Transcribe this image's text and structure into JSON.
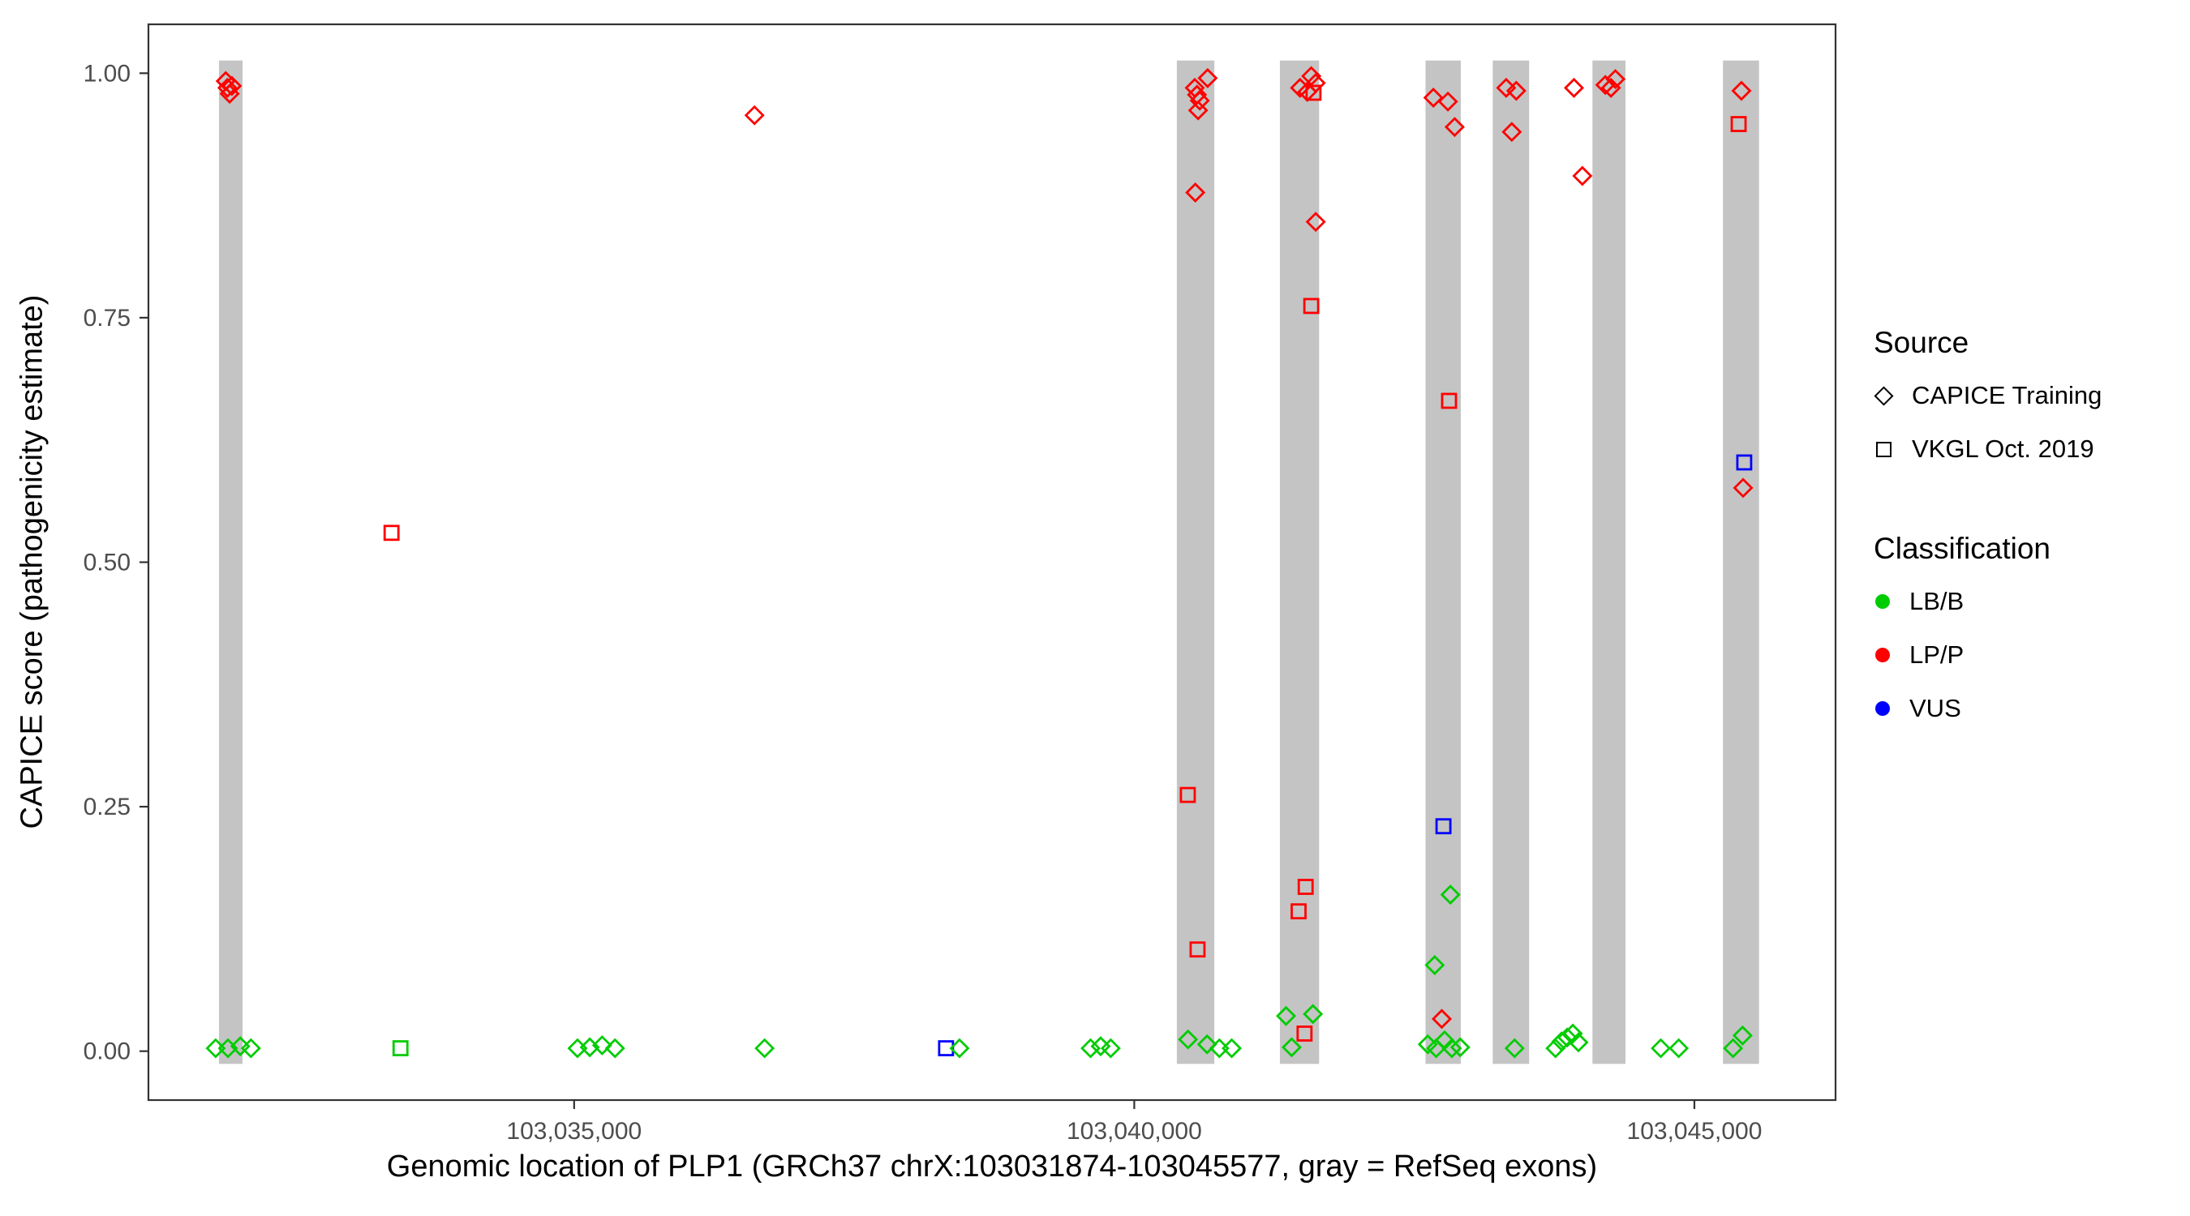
{
  "figure": {
    "x_axis_title": "Genomic location of PLP1 (GRCh37 chrX:103031874-103045577, gray = RefSeq exons)",
    "y_axis_title": "CAPICE score (pathogenicity estimate)"
  },
  "legend": {
    "source": {
      "title": "Source",
      "items": [
        {
          "label": "CAPICE Training",
          "shape": "diamond"
        },
        {
          "label": "VKGL Oct. 2019",
          "shape": "square"
        }
      ]
    },
    "classification": {
      "title": "Classification",
      "items": [
        {
          "label": "LB/B",
          "color": "#00CC00"
        },
        {
          "label": "LP/P",
          "color": "#FF0000"
        },
        {
          "label": "VUS",
          "color": "#0000FF"
        }
      ]
    }
  },
  "chart_data": {
    "type": "scatter",
    "title": "",
    "xlabel": "Genomic location of PLP1 (GRCh37 chrX:103031874-103045577, gray = RefSeq exons)",
    "ylabel": "CAPICE score (pathogenicity estimate)",
    "x_domain": [
      103031200,
      103046260
    ],
    "y_domain": [
      -0.05,
      1.05
    ],
    "x_ticks": [
      {
        "value": 103035000,
        "label": "103,035,000"
      },
      {
        "value": 103040000,
        "label": "103,040,000"
      },
      {
        "value": 103045000,
        "label": "103,045,000"
      }
    ],
    "y_ticks": [
      {
        "value": 0.0,
        "label": "0.00"
      },
      {
        "value": 0.25,
        "label": "0.25"
      },
      {
        "value": 0.5,
        "label": "0.50"
      },
      {
        "value": 0.75,
        "label": "0.75"
      },
      {
        "value": 1.0,
        "label": "1.00"
      }
    ],
    "grid": false,
    "legend_position": "right",
    "exon_color": "#C4C4C4",
    "exon_band_y": [
      -0.013,
      1.013
    ],
    "exons": [
      [
        103031830,
        103032040
      ],
      [
        103040380,
        103040715
      ],
      [
        103041300,
        103041650
      ],
      [
        103042600,
        103042915
      ],
      [
        103043200,
        103043525
      ],
      [
        103044090,
        103044385
      ],
      [
        103045255,
        103045577
      ]
    ],
    "colors": {
      "LB/B": "#00CC00",
      "LP/P": "#FF0000",
      "VUS": "#0000FF"
    },
    "shapes": {
      "CAPICE Training": "diamond",
      "VKGL Oct. 2019": "square"
    },
    "points": [
      {
        "x": 103031800,
        "y": 0.003,
        "source": "CAPICE Training",
        "class": "LB/B"
      },
      {
        "x": 103031890,
        "y": 0.992,
        "source": "CAPICE Training",
        "class": "LP/P"
      },
      {
        "x": 103031905,
        "y": 0.985,
        "source": "CAPICE Training",
        "class": "LP/P"
      },
      {
        "x": 103031925,
        "y": 0.979,
        "source": "CAPICE Training",
        "class": "LP/P"
      },
      {
        "x": 103031945,
        "y": 0.987,
        "source": "CAPICE Training",
        "class": "LP/P"
      },
      {
        "x": 103031910,
        "y": 0.003,
        "source": "CAPICE Training",
        "class": "LB/B"
      },
      {
        "x": 103032020,
        "y": 0.005,
        "source": "CAPICE Training",
        "class": "LB/B"
      },
      {
        "x": 103032115,
        "y": 0.003,
        "source": "CAPICE Training",
        "class": "LB/B"
      },
      {
        "x": 103033370,
        "y": 0.53,
        "source": "VKGL Oct. 2019",
        "class": "LP/P"
      },
      {
        "x": 103033450,
        "y": 0.003,
        "source": "VKGL Oct. 2019",
        "class": "LB/B"
      },
      {
        "x": 103035030,
        "y": 0.003,
        "source": "CAPICE Training",
        "class": "LB/B"
      },
      {
        "x": 103035140,
        "y": 0.004,
        "source": "CAPICE Training",
        "class": "LB/B"
      },
      {
        "x": 103035250,
        "y": 0.006,
        "source": "CAPICE Training",
        "class": "LB/B"
      },
      {
        "x": 103035365,
        "y": 0.003,
        "source": "CAPICE Training",
        "class": "LB/B"
      },
      {
        "x": 103036610,
        "y": 0.957,
        "source": "CAPICE Training",
        "class": "LP/P"
      },
      {
        "x": 103036700,
        "y": 0.003,
        "source": "CAPICE Training",
        "class": "LB/B"
      },
      {
        "x": 103038320,
        "y": 0.003,
        "source": "VKGL Oct. 2019",
        "class": "VUS"
      },
      {
        "x": 103038440,
        "y": 0.003,
        "source": "CAPICE Training",
        "class": "LB/B"
      },
      {
        "x": 103039610,
        "y": 0.003,
        "source": "CAPICE Training",
        "class": "LB/B"
      },
      {
        "x": 103039700,
        "y": 0.005,
        "source": "CAPICE Training",
        "class": "LB/B"
      },
      {
        "x": 103039790,
        "y": 0.003,
        "source": "CAPICE Training",
        "class": "LB/B"
      },
      {
        "x": 103040478,
        "y": 0.262,
        "source": "VKGL Oct. 2019",
        "class": "LP/P"
      },
      {
        "x": 103040480,
        "y": 0.012,
        "source": "CAPICE Training",
        "class": "LB/B"
      },
      {
        "x": 103040540,
        "y": 0.985,
        "source": "CAPICE Training",
        "class": "LP/P"
      },
      {
        "x": 103040560,
        "y": 0.978,
        "source": "CAPICE Training",
        "class": "LP/P"
      },
      {
        "x": 103040570,
        "y": 0.962,
        "source": "CAPICE Training",
        "class": "LP/P"
      },
      {
        "x": 103040585,
        "y": 0.972,
        "source": "CAPICE Training",
        "class": "LP/P"
      },
      {
        "x": 103040545,
        "y": 0.878,
        "source": "CAPICE Training",
        "class": "LP/P"
      },
      {
        "x": 103040565,
        "y": 0.104,
        "source": "VKGL Oct. 2019",
        "class": "LP/P"
      },
      {
        "x": 103040655,
        "y": 0.995,
        "source": "CAPICE Training",
        "class": "LP/P"
      },
      {
        "x": 103040650,
        "y": 0.007,
        "source": "CAPICE Training",
        "class": "LB/B"
      },
      {
        "x": 103040760,
        "y": 0.003,
        "source": "CAPICE Training",
        "class": "LB/B"
      },
      {
        "x": 103040870,
        "y": 0.003,
        "source": "CAPICE Training",
        "class": "LB/B"
      },
      {
        "x": 103041355,
        "y": 0.036,
        "source": "CAPICE Training",
        "class": "LB/B"
      },
      {
        "x": 103041405,
        "y": 0.004,
        "source": "CAPICE Training",
        "class": "LB/B"
      },
      {
        "x": 103041467,
        "y": 0.143,
        "source": "VKGL Oct. 2019",
        "class": "LP/P"
      },
      {
        "x": 103041480,
        "y": 0.985,
        "source": "CAPICE Training",
        "class": "LP/P"
      },
      {
        "x": 103041520,
        "y": 0.018,
        "source": "VKGL Oct. 2019",
        "class": "LP/P"
      },
      {
        "x": 103041530,
        "y": 0.168,
        "source": "VKGL Oct. 2019",
        "class": "LP/P"
      },
      {
        "x": 103041545,
        "y": 0.981,
        "source": "CAPICE Training",
        "class": "LP/P"
      },
      {
        "x": 103041580,
        "y": 0.997,
        "source": "CAPICE Training",
        "class": "LP/P"
      },
      {
        "x": 103041580,
        "y": 0.762,
        "source": "VKGL Oct. 2019",
        "class": "LP/P"
      },
      {
        "x": 103041595,
        "y": 0.038,
        "source": "CAPICE Training",
        "class": "LB/B"
      },
      {
        "x": 103041600,
        "y": 0.98,
        "source": "VKGL Oct. 2019",
        "class": "LP/P"
      },
      {
        "x": 103041620,
        "y": 0.99,
        "source": "CAPICE Training",
        "class": "LP/P"
      },
      {
        "x": 103041620,
        "y": 0.848,
        "source": "CAPICE Training",
        "class": "LP/P"
      },
      {
        "x": 103042620,
        "y": 0.007,
        "source": "CAPICE Training",
        "class": "LB/B"
      },
      {
        "x": 103042670,
        "y": 0.975,
        "source": "CAPICE Training",
        "class": "LP/P"
      },
      {
        "x": 103042682,
        "y": 0.088,
        "source": "CAPICE Training",
        "class": "LB/B"
      },
      {
        "x": 103042695,
        "y": 0.003,
        "source": "CAPICE Training",
        "class": "LB/B"
      },
      {
        "x": 103042745,
        "y": 0.033,
        "source": "CAPICE Training",
        "class": "LP/P"
      },
      {
        "x": 103042770,
        "y": 0.011,
        "source": "CAPICE Training",
        "class": "LB/B"
      },
      {
        "x": 103042800,
        "y": 0.971,
        "source": "CAPICE Training",
        "class": "LP/P"
      },
      {
        "x": 103042810,
        "y": 0.665,
        "source": "VKGL Oct. 2019",
        "class": "LP/P"
      },
      {
        "x": 103042822,
        "y": 0.16,
        "source": "CAPICE Training",
        "class": "LB/B"
      },
      {
        "x": 103042835,
        "y": 0.003,
        "source": "CAPICE Training",
        "class": "LB/B"
      },
      {
        "x": 103042860,
        "y": 0.945,
        "source": "CAPICE Training",
        "class": "LP/P"
      },
      {
        "x": 103042760,
        "y": 0.23,
        "source": "VKGL Oct. 2019",
        "class": "VUS"
      },
      {
        "x": 103042910,
        "y": 0.004,
        "source": "CAPICE Training",
        "class": "LB/B"
      },
      {
        "x": 103043320,
        "y": 0.985,
        "source": "CAPICE Training",
        "class": "LP/P"
      },
      {
        "x": 103043370,
        "y": 0.94,
        "source": "CAPICE Training",
        "class": "LP/P"
      },
      {
        "x": 103043410,
        "y": 0.982,
        "source": "CAPICE Training",
        "class": "LP/P"
      },
      {
        "x": 103043395,
        "y": 0.003,
        "source": "CAPICE Training",
        "class": "LB/B"
      },
      {
        "x": 103043760,
        "y": 0.003,
        "source": "CAPICE Training",
        "class": "LB/B"
      },
      {
        "x": 103043815,
        "y": 0.01,
        "source": "CAPICE Training",
        "class": "LB/B"
      },
      {
        "x": 103043865,
        "y": 0.014,
        "source": "CAPICE Training",
        "class": "LB/B"
      },
      {
        "x": 103043915,
        "y": 0.018,
        "source": "CAPICE Training",
        "class": "LB/B"
      },
      {
        "x": 103043925,
        "y": 0.985,
        "source": "CAPICE Training",
        "class": "LP/P"
      },
      {
        "x": 103043965,
        "y": 0.009,
        "source": "CAPICE Training",
        "class": "LB/B"
      },
      {
        "x": 103044000,
        "y": 0.895,
        "source": "CAPICE Training",
        "class": "LP/P"
      },
      {
        "x": 103044205,
        "y": 0.988,
        "source": "CAPICE Training",
        "class": "LP/P"
      },
      {
        "x": 103044255,
        "y": 0.985,
        "source": "CAPICE Training",
        "class": "LP/P"
      },
      {
        "x": 103044295,
        "y": 0.994,
        "source": "CAPICE Training",
        "class": "LP/P"
      },
      {
        "x": 103044700,
        "y": 0.003,
        "source": "CAPICE Training",
        "class": "LB/B"
      },
      {
        "x": 103044860,
        "y": 0.003,
        "source": "CAPICE Training",
        "class": "LB/B"
      },
      {
        "x": 103045345,
        "y": 0.003,
        "source": "CAPICE Training",
        "class": "LB/B"
      },
      {
        "x": 103045395,
        "y": 0.948,
        "source": "VKGL Oct. 2019",
        "class": "LP/P"
      },
      {
        "x": 103045420,
        "y": 0.982,
        "source": "CAPICE Training",
        "class": "LP/P"
      },
      {
        "x": 103045430,
        "y": 0.016,
        "source": "CAPICE Training",
        "class": "LB/B"
      },
      {
        "x": 103045435,
        "y": 0.576,
        "source": "CAPICE Training",
        "class": "LP/P"
      },
      {
        "x": 103045445,
        "y": 0.602,
        "source": "VKGL Oct. 2019",
        "class": "VUS"
      }
    ]
  }
}
